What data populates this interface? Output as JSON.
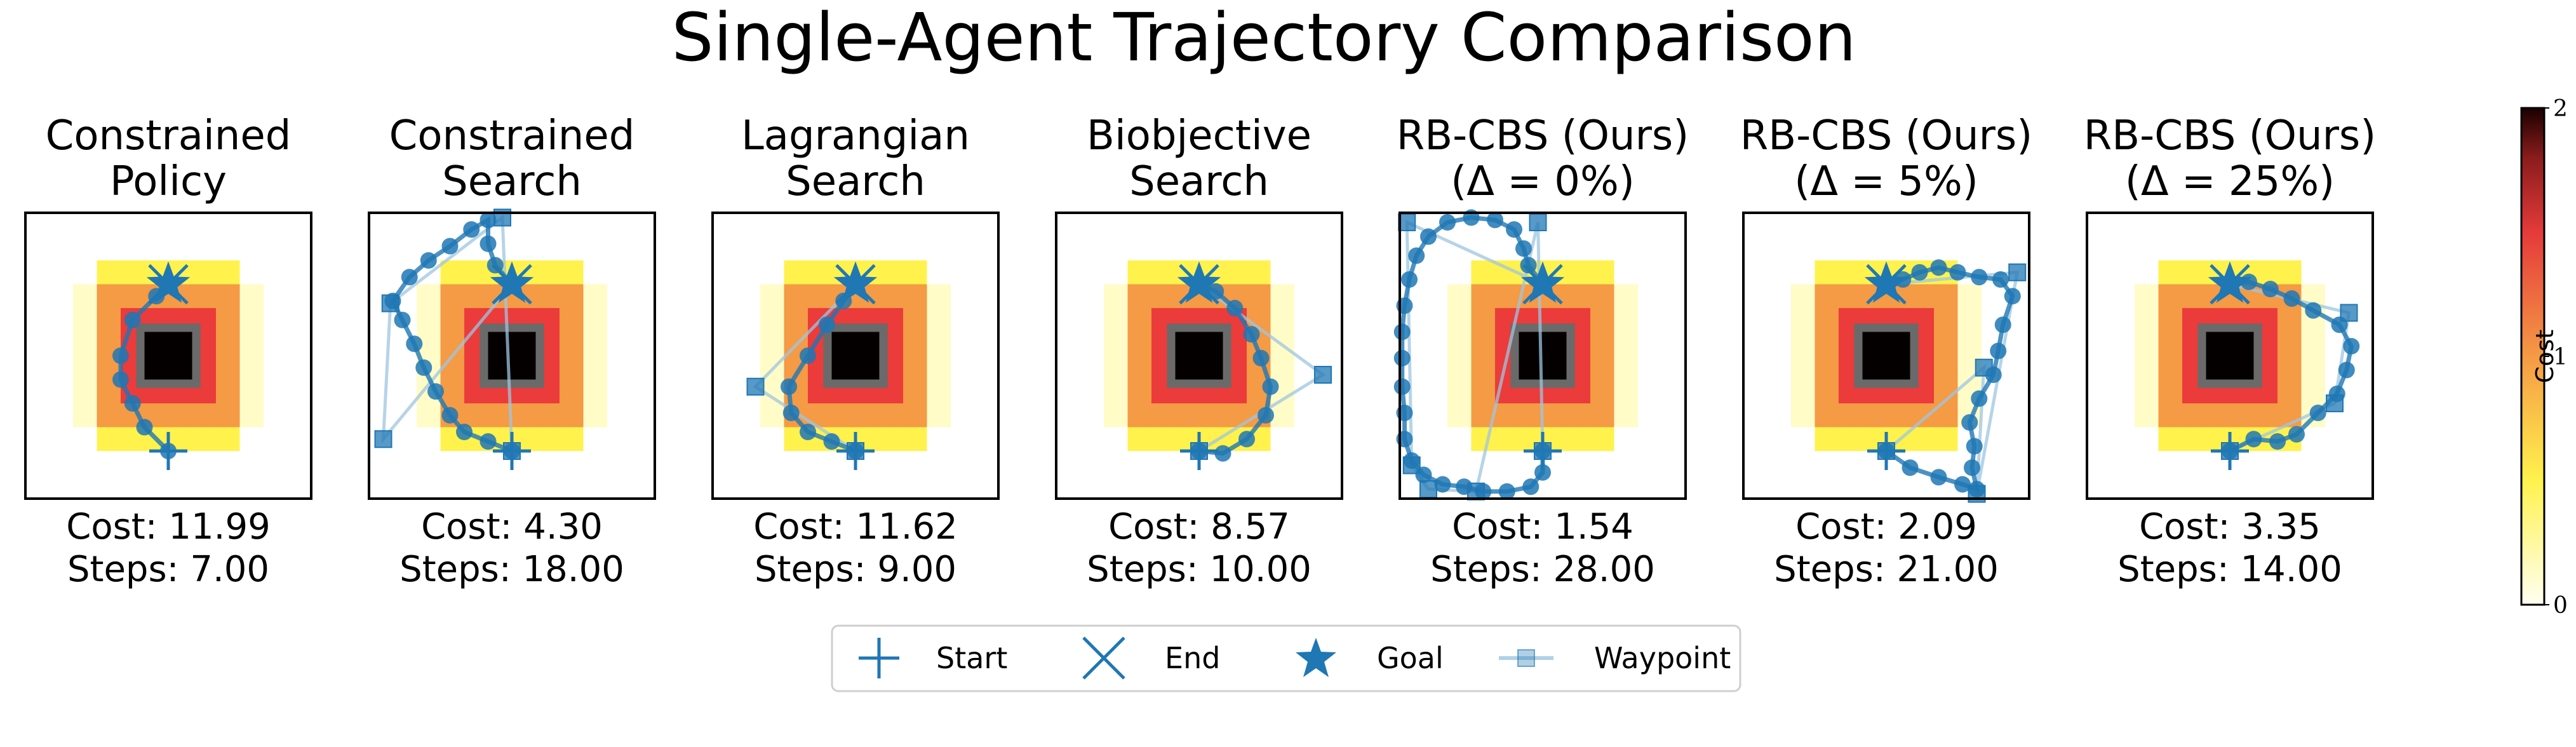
{
  "colors": {
    "marker": "#1f77b4",
    "path": "#1f77b4",
    "waypoint_line": "#9ec5e0",
    "obstacle_core": "#050000",
    "obstacle_rim": "#6a6a6a",
    "cost_ring_1": "#eb3b3b",
    "cost_ring_2": "#f59a45",
    "cost_ring_3": "#fff24d",
    "cost_ring_4": "#fffcc8"
  },
  "chart_data": {
    "type": "trajectory_grid",
    "title": "Single-Agent Trajectory Comparison",
    "grid_size": 12,
    "start": [
      6,
      2
    ],
    "goal": [
      6,
      9
    ],
    "cost_field": {
      "obstacle": [
        5,
        7,
        5,
        7
      ],
      "rings": [
        {
          "range": [
            4,
            8,
            4,
            8
          ],
          "level": 1.7
        },
        {
          "range": [
            3,
            9,
            3,
            9
          ],
          "level": 1.25
        },
        {
          "range": [
            3,
            9,
            2,
            10
          ],
          "level": 0.7
        },
        {
          "range": [
            2,
            10,
            3,
            9
          ],
          "level": 0.15
        }
      ]
    },
    "colorbar": {
      "label": "Cost",
      "min": 0,
      "max": 2,
      "ticks": [
        "0",
        "1",
        "2"
      ]
    },
    "legend": [
      "Start",
      "End",
      "Goal",
      "Waypoint"
    ],
    "panels": [
      {
        "title": [
          "Constrained",
          "Policy"
        ],
        "cost_label": "Cost:",
        "cost": "11.99",
        "steps_label": "Steps:",
        "steps": "7.00",
        "trajectory": [
          [
            6,
            2
          ],
          [
            5,
            3
          ],
          [
            4.5,
            4
          ],
          [
            4,
            5
          ],
          [
            4,
            6
          ],
          [
            4.5,
            7.5
          ],
          [
            5.5,
            8.5
          ],
          [
            6,
            9
          ]
        ],
        "waypoints": []
      },
      {
        "title": [
          "Constrained",
          "Search"
        ],
        "cost_label": "Cost:",
        "cost": "4.30",
        "steps_label": "Steps:",
        "steps": "18.00",
        "trajectory": [
          [
            6,
            2
          ],
          [
            5,
            2.4
          ],
          [
            4,
            2.8
          ],
          [
            3.4,
            3.5
          ],
          [
            2.8,
            4.5
          ],
          [
            2.3,
            5.5
          ],
          [
            1.9,
            6.5
          ],
          [
            1.4,
            7.5
          ],
          [
            1.0,
            8.3
          ],
          [
            1.7,
            9.3
          ],
          [
            2.5,
            10.0
          ],
          [
            3.4,
            10.6
          ],
          [
            4.3,
            11.3
          ],
          [
            5.0,
            11.7
          ],
          [
            5.0,
            10.7
          ],
          [
            5.3,
            9.8
          ],
          [
            6,
            9
          ]
        ],
        "waypoints": [
          [
            0.6,
            2.5
          ],
          [
            0.9,
            8.2
          ],
          [
            5.6,
            11.8
          ],
          [
            6,
            2
          ]
        ]
      },
      {
        "title": [
          "Lagrangian",
          "Search"
        ],
        "cost_label": "Cost:",
        "cost": "11.62",
        "steps_label": "Steps:",
        "steps": "9.00",
        "trajectory": [
          [
            6,
            2
          ],
          [
            5,
            2.4
          ],
          [
            4,
            2.8
          ],
          [
            3.3,
            3.6
          ],
          [
            3.2,
            4.7
          ],
          [
            4,
            6
          ],
          [
            4.8,
            7.3
          ],
          [
            5.5,
            8.3
          ],
          [
            6,
            9
          ]
        ],
        "waypoints": [
          [
            1.8,
            4.7
          ],
          [
            6,
            2
          ]
        ]
      },
      {
        "title": [
          "Biobjective",
          "Search"
        ],
        "cost_label": "Cost:",
        "cost": "8.57",
        "steps_label": "Steps:",
        "steps": "10.00",
        "trajectory": [
          [
            6,
            2
          ],
          [
            7,
            1.9
          ],
          [
            8,
            2.5
          ],
          [
            8.8,
            3.5
          ],
          [
            9,
            4.7
          ],
          [
            8.6,
            5.9
          ],
          [
            8.2,
            6.9
          ],
          [
            7.5,
            8
          ],
          [
            6.7,
            8.7
          ],
          [
            6,
            9
          ]
        ],
        "waypoints": [
          [
            11.2,
            5.2
          ],
          [
            6,
            2
          ]
        ]
      },
      {
        "title": [
          "RB-CBS (Ours)",
          "(Δ = 0%)"
        ],
        "cost_label": "Cost:",
        "cost": "1.54",
        "steps_label": "Steps:",
        "steps": "28.00",
        "trajectory": [
          [
            6,
            2
          ],
          [
            6,
            1.1
          ],
          [
            5.5,
            0.5
          ],
          [
            4.5,
            0.3
          ],
          [
            3.5,
            0.3
          ],
          [
            2.7,
            0.5
          ],
          [
            1.8,
            0.6
          ],
          [
            1.0,
            1.0
          ],
          [
            0.5,
            1.6
          ],
          [
            0.2,
            2.5
          ],
          [
            0.2,
            3.6
          ],
          [
            0.1,
            4.7
          ],
          [
            0.1,
            5.9
          ],
          [
            0.1,
            7.0
          ],
          [
            0.2,
            8.1
          ],
          [
            0.4,
            9.2
          ],
          [
            0.7,
            10.2
          ],
          [
            1.2,
            11.0
          ],
          [
            2,
            11.6
          ],
          [
            3,
            11.8
          ],
          [
            4,
            11.7
          ],
          [
            4.8,
            11.3
          ],
          [
            5.2,
            10.5
          ],
          [
            5.4,
            9.8
          ],
          [
            6,
            9
          ]
        ],
        "waypoints": [
          [
            0.3,
            11.6
          ],
          [
            0.5,
            1.4
          ],
          [
            1.2,
            0.4
          ],
          [
            3.2,
            0.3
          ],
          [
            5.8,
            11.6
          ],
          [
            6,
            2
          ]
        ]
      },
      {
        "title": [
          "RB-CBS (Ours)",
          "(Δ = 5%)"
        ],
        "cost_label": "Cost:",
        "cost": "2.09",
        "steps_label": "Steps:",
        "steps": "21.00",
        "trajectory": [
          [
            6,
            2
          ],
          [
            7,
            1.3
          ],
          [
            8.2,
            0.9
          ],
          [
            9.2,
            0.6
          ],
          [
            9.8,
            0.4
          ],
          [
            9.6,
            1.3
          ],
          [
            9.7,
            2.2
          ],
          [
            9.5,
            3.2
          ],
          [
            9.9,
            4.2
          ],
          [
            10.5,
            5.2
          ],
          [
            10.7,
            6.2
          ],
          [
            10.9,
            7.3
          ],
          [
            11.3,
            8.5
          ],
          [
            10.8,
            9.2
          ],
          [
            9.9,
            9.3
          ],
          [
            9.0,
            9.5
          ],
          [
            8.2,
            9.7
          ],
          [
            7.4,
            9.5
          ],
          [
            6.7,
            9.2
          ],
          [
            6,
            9
          ]
        ],
        "waypoints": [
          [
            11.5,
            9.5
          ],
          [
            9.8,
            0.2
          ],
          [
            10.1,
            5.5
          ],
          [
            6,
            2
          ]
        ]
      },
      {
        "title": [
          "RB-CBS (Ours)",
          "(Δ = 25%)"
        ],
        "cost_label": "Cost:",
        "cost": "3.35",
        "steps_label": "Steps:",
        "steps": "14.00",
        "trajectory": [
          [
            6,
            2
          ],
          [
            7,
            2.5
          ],
          [
            8,
            2.4
          ],
          [
            8.8,
            2.7
          ],
          [
            9.7,
            3.6
          ],
          [
            10.5,
            4.4
          ],
          [
            10.9,
            5.4
          ],
          [
            11.1,
            6.4
          ],
          [
            10.6,
            7.3
          ],
          [
            9.5,
            7.9
          ],
          [
            8.6,
            8.4
          ],
          [
            7.7,
            8.8
          ],
          [
            6.8,
            9.1
          ],
          [
            6,
            9
          ]
        ],
        "waypoints": [
          [
            11.0,
            7.8
          ],
          [
            10.4,
            4.0
          ],
          [
            6,
            2
          ]
        ]
      }
    ]
  }
}
